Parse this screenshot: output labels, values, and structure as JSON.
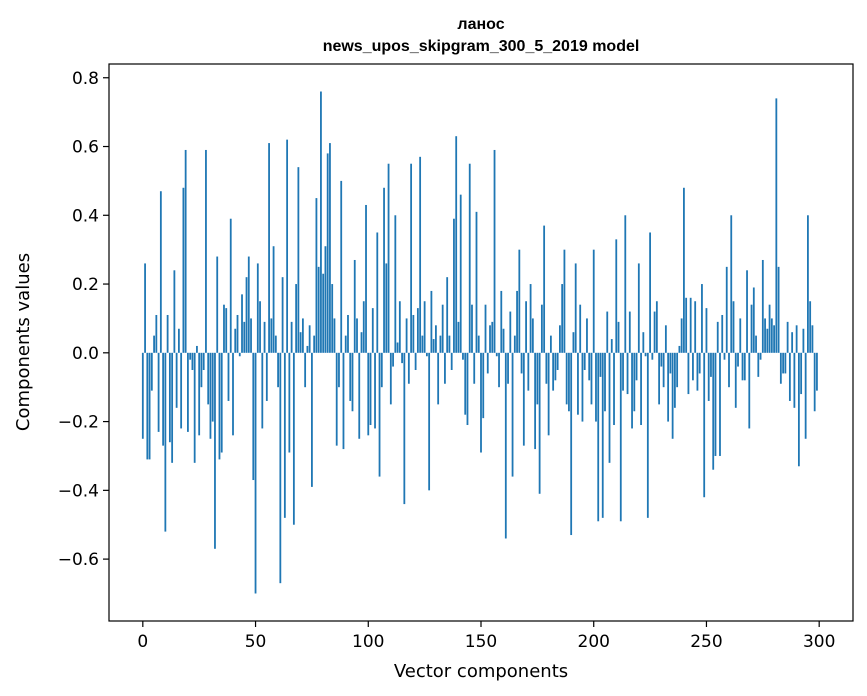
{
  "chart_data": {
    "type": "bar",
    "title_line1": "ланос",
    "title_line2": "news_upos_skipgram_300_5_2019 model",
    "xlabel": "Vector components",
    "ylabel": "Components values",
    "xlim": [
      -15,
      315
    ],
    "ylim": [
      -0.78,
      0.84
    ],
    "x_ticks": [
      0,
      50,
      100,
      150,
      200,
      250,
      300
    ],
    "x_tick_labels": [
      "0",
      "50",
      "100",
      "150",
      "200",
      "250",
      "300"
    ],
    "y_ticks": [
      -0.6,
      -0.4,
      -0.2,
      0.0,
      0.2,
      0.4,
      0.6,
      0.8
    ],
    "y_tick_labels": [
      "−0.6",
      "−0.4",
      "−0.2",
      "0.0",
      "0.2",
      "0.4",
      "0.6",
      "0.8"
    ],
    "bar_color": "#1f77b4",
    "series": [
      {
        "name": "ланос",
        "values": [
          -0.25,
          0.26,
          -0.31,
          -0.31,
          -0.11,
          0.05,
          0.11,
          -0.23,
          0.47,
          -0.27,
          -0.52,
          0.11,
          -0.26,
          -0.32,
          0.24,
          -0.16,
          0.07,
          -0.22,
          0.48,
          0.59,
          -0.23,
          -0.02,
          -0.05,
          -0.32,
          0.02,
          -0.24,
          -0.1,
          -0.05,
          0.59,
          -0.15,
          -0.25,
          -0.2,
          -0.57,
          0.28,
          -0.31,
          -0.29,
          0.14,
          0.13,
          -0.14,
          0.39,
          -0.24,
          0.07,
          0.11,
          -0.01,
          0.17,
          0.09,
          0.22,
          0.28,
          0.1,
          -0.37,
          -0.7,
          0.26,
          0.15,
          -0.22,
          0.09,
          -0.14,
          0.61,
          0.1,
          0.31,
          0.05,
          -0.1,
          -0.67,
          0.22,
          -0.48,
          0.62,
          -0.29,
          0.09,
          -0.5,
          0.2,
          0.54,
          0.06,
          0.1,
          -0.1,
          0.02,
          0.08,
          -0.39,
          0.05,
          0.45,
          0.25,
          0.76,
          0.23,
          0.31,
          0.58,
          0.61,
          0.2,
          0.1,
          -0.27,
          -0.1,
          0.5,
          -0.28,
          0.05,
          0.11,
          -0.14,
          -0.17,
          0.27,
          0.1,
          -0.25,
          0.06,
          0.15,
          0.43,
          -0.24,
          -0.21,
          0.13,
          -0.22,
          0.35,
          -0.36,
          -0.1,
          0.48,
          0.26,
          0.55,
          -0.15,
          -0.04,
          0.4,
          0.03,
          0.15,
          -0.03,
          -0.44,
          0.1,
          -0.09,
          0.55,
          0.11,
          -0.05,
          0.13,
          0.57,
          0.05,
          0.15,
          -0.01,
          -0.4,
          0.18,
          0.04,
          0.08,
          -0.15,
          0.05,
          0.14,
          -0.09,
          0.22,
          0.05,
          -0.05,
          0.39,
          0.63,
          0.09,
          0.46,
          -0.02,
          -0.18,
          -0.21,
          0.55,
          0.14,
          -0.09,
          0.41,
          0.05,
          -0.29,
          -0.19,
          0.14,
          -0.06,
          0.08,
          0.09,
          0.59,
          -0.01,
          -0.1,
          0.18,
          0.07,
          -0.54,
          -0.09,
          0.12,
          -0.36,
          0.05,
          0.18,
          0.3,
          -0.06,
          -0.27,
          0.15,
          -0.11,
          0.2,
          0.1,
          -0.28,
          -0.15,
          -0.41,
          0.14,
          0.37,
          -0.09,
          -0.24,
          0.05,
          -0.11,
          -0.08,
          -0.05,
          0.08,
          0.2,
          0.3,
          -0.15,
          -0.17,
          -0.53,
          0.06,
          0.26,
          -0.18,
          0.14,
          -0.2,
          -0.05,
          0.1,
          -0.08,
          -0.15,
          0.3,
          -0.2,
          -0.49,
          -0.07,
          -0.48,
          -0.17,
          0.12,
          -0.32,
          0.04,
          -0.21,
          0.33,
          0.09,
          -0.49,
          -0.11,
          0.4,
          -0.12,
          0.12,
          -0.22,
          -0.17,
          -0.08,
          0.26,
          -0.21,
          0.06,
          -0.01,
          -0.48,
          0.35,
          -0.02,
          0.12,
          0.15,
          -0.15,
          -0.04,
          -0.1,
          0.08,
          -0.2,
          -0.06,
          -0.25,
          -0.16,
          -0.1,
          0.02,
          0.1,
          0.48,
          0.16,
          -0.12,
          0.16,
          -0.08,
          0.15,
          -0.11,
          -0.06,
          0.2,
          -0.42,
          0.13,
          -0.14,
          -0.07,
          -0.34,
          -0.3,
          0.09,
          -0.3,
          0.11,
          -0.02,
          0.25,
          -0.1,
          0.4,
          0.15,
          -0.16,
          -0.04,
          0.1,
          -0.08,
          -0.08,
          0.24,
          -0.22,
          0.14,
          0.19,
          0.05,
          -0.07,
          -0.02,
          0.27,
          0.1,
          0.07,
          0.14,
          0.1,
          0.08,
          0.74,
          0.25,
          -0.09,
          -0.06,
          -0.06,
          0.09,
          -0.14,
          0.06,
          -0.16,
          0.08,
          -0.33,
          -0.12,
          0.07,
          -0.25,
          0.4,
          0.15,
          0.08,
          -0.17,
          -0.11
        ]
      }
    ]
  }
}
